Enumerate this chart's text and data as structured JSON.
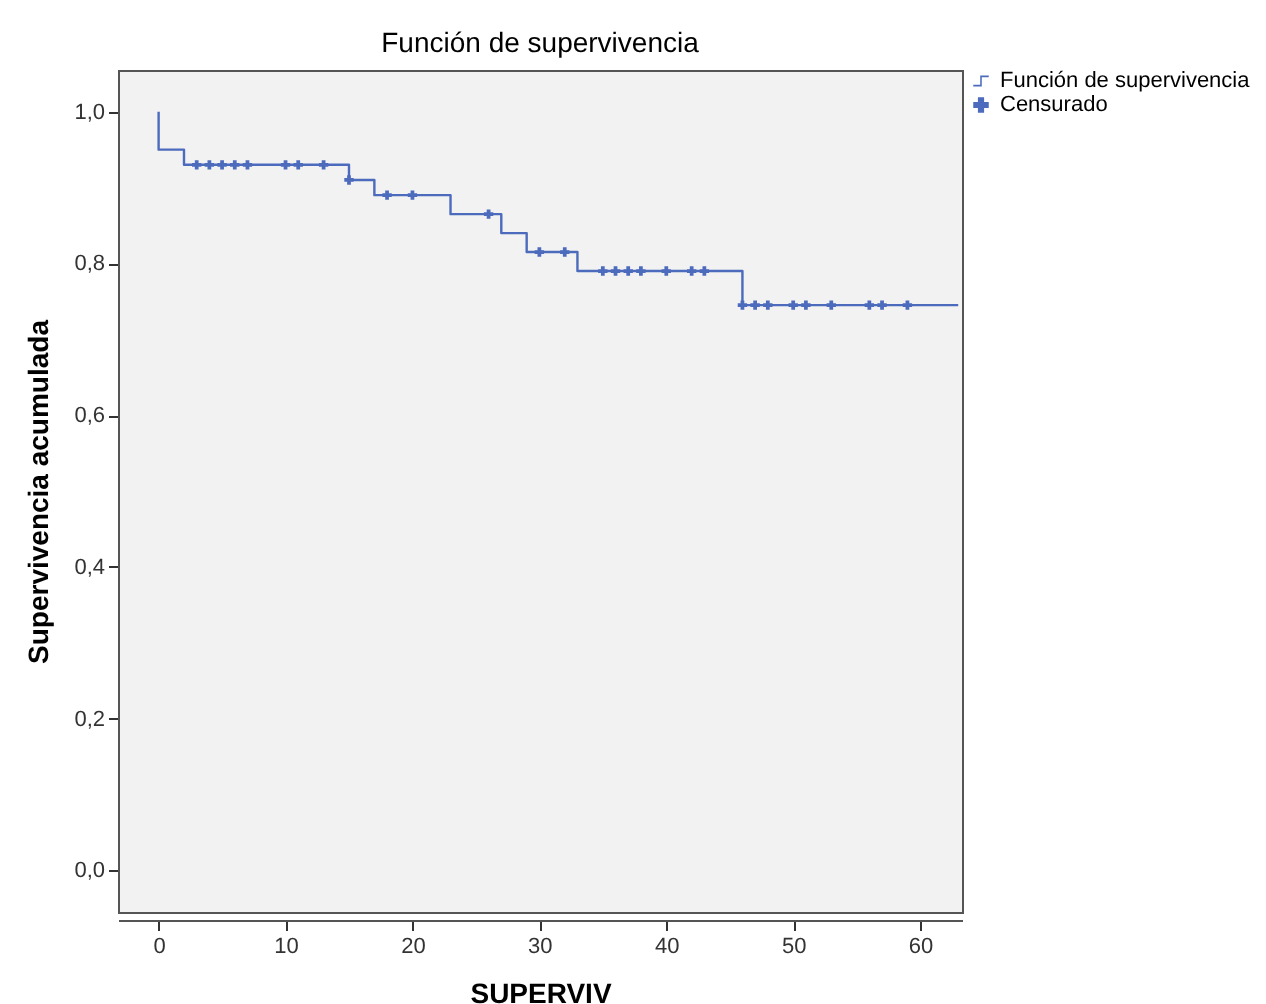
{
  "chart_data": {
    "type": "step",
    "title": "Función de supervivencia",
    "xlabel": "SUPERVIV",
    "ylabel": "Supervivencia acumulada",
    "xlim": [
      -3.2,
      63.3
    ],
    "ylim": [
      -0.055,
      1.055
    ],
    "xticks": [
      0,
      10,
      20,
      30,
      40,
      50,
      60
    ],
    "yticks": [
      {
        "value": 0,
        "label": "0,0"
      },
      {
        "value": 0.2,
        "label": "0,2"
      },
      {
        "value": 0.4,
        "label": "0,4"
      },
      {
        "value": 0.6,
        "label": "0,6"
      },
      {
        "value": 0.8,
        "label": "0,8"
      },
      {
        "value": 1,
        "label": "1,0"
      }
    ],
    "grid": false,
    "legend": "top right",
    "series": [
      {
        "name": "Función de supervivencia",
        "color": "#4d6bbd",
        "x": [
          0,
          0,
          2,
          15,
          17,
          23,
          27,
          29,
          33,
          46,
          63
        ],
        "values": [
          1,
          0.95,
          0.93,
          0.91,
          0.89,
          0.865,
          0.84,
          0.815,
          0.79,
          0.745,
          0.745
        ]
      },
      {
        "name": "Censurado",
        "type": "scatter",
        "marker": "cross",
        "color": "#4d6bbd",
        "x": [
          3,
          4,
          5,
          6,
          7,
          10,
          11,
          13,
          15,
          18,
          20,
          26,
          30,
          32,
          35,
          36,
          37,
          38,
          40,
          42,
          43,
          46,
          47,
          48,
          50,
          51,
          53,
          56,
          57,
          59
        ],
        "values": [
          0.93,
          0.93,
          0.93,
          0.93,
          0.93,
          0.93,
          0.93,
          0.93,
          0.91,
          0.89,
          0.89,
          0.865,
          0.815,
          0.815,
          0.79,
          0.79,
          0.79,
          0.79,
          0.79,
          0.79,
          0.79,
          0.745,
          0.745,
          0.745,
          0.745,
          0.745,
          0.745,
          0.745,
          0.745,
          0.745
        ]
      }
    ]
  }
}
